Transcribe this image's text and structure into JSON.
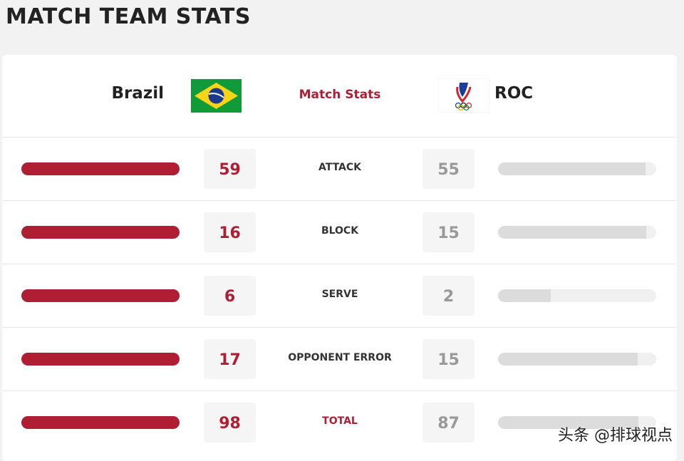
{
  "header": {
    "title": "MATCH TEAM STATS"
  },
  "teams": {
    "home": "Brazil",
    "center": "Match Stats",
    "away": "ROC"
  },
  "rows": [
    {
      "label": "ATTACK",
      "home": 59,
      "away": 55
    },
    {
      "label": "BLOCK",
      "home": 16,
      "away": 15
    },
    {
      "label": "SERVE",
      "home": 6,
      "away": 2
    },
    {
      "label": "OPPONENT ERROR",
      "home": 17,
      "away": 15
    },
    {
      "label": "TOTAL",
      "home": 98,
      "away": 87
    }
  ],
  "watermark": "头条 @排球视点"
}
